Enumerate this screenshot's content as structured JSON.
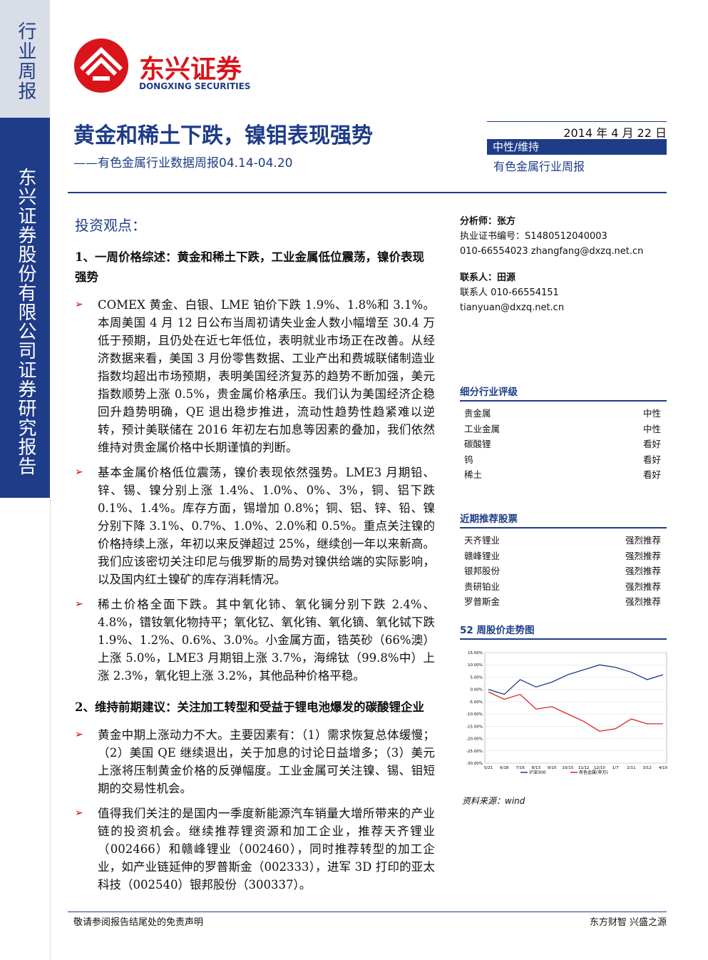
{
  "sidebar": {
    "type": "行业周报",
    "company": "东兴证券股份有限公司证券研究报告"
  },
  "logo": {
    "name": "东兴证券",
    "en": "DONGXING SECURITIES"
  },
  "title": "黄金和稀土下跌，镍钼表现强势",
  "subtitle": "——有色金属行业数据周报04.14-04.20",
  "meta": {
    "date": "2014 年 4 月 22 日",
    "rating": "中性/维持",
    "category": "有色金属行业周报"
  },
  "main": {
    "heading": "投资观点：",
    "sections": [
      {
        "heading": "1、一周价格综述：黄金和稀土下跌，工业金属低位震荡，镍价表现强势",
        "bullets": [
          "COMEX 黄金、白银、LME 铂价下跌 1.9%、1.8%和 3.1%。本周美国 4 月 12 日公布当周初请失业金人数小幅增至 30.4 万低于预期，且仍处在近七年低位，表明就业市场正在改善。从经济数据来看，美国 3 月份零售数据、工业产出和费城联储制造业指数均超出市场预期，表明美国经济复苏的趋势不断加强，美元指数顺势上涨 0.5%，贵金属价格承压。我们认为美国经济企稳回升趋势明确，QE 退出稳步推进，流动性趋势性趋紧难以逆转，预计美联储在 2016 年初左右加息等因素的叠加，我们依然维持对贵金属价格中长期谨慎的判断。",
          "基本金属价格低位震荡，镍价表现依然强势。LME3 月期铅、锌、锡、镍分别上涨 1.4%、1.0%、0%、3%，铜、铝下跌 0.1%、1.4%。库存方面，锡增加 0.8%；铜、铝、锌、铅、镍分别下降 3.1%、0.7%、1.0%、2.0%和 0.5%。重点关注镍的价格持续上涨，年初以来反弹超过 25%，继续创一年以来新高。我们应该密切关注印尼与俄罗斯的局势对镍供给端的实际影响，以及国内红土镍矿的库存消耗情况。",
          "稀土价格全面下跌。其中氧化铈、氧化镧分别下跌 2.4%、4.8%，镨钕氧化物持平；氧化钇、氧化铕、氧化镝、氧化铽下跌 1.9%、1.2%、0.6%、3.0%。小金属方面，锆英砂（66%澳）上涨 5.0%，LME3 月期钼上涨 3.7%，海绵钛（99.8%中）上涨 2.3%，氧化钽上涨 3.2%，其他品种价格平稳。"
        ]
      },
      {
        "heading": "2、维持前期建议：关注加工转型和受益于锂电池爆发的碳酸锂企业",
        "bullets": [
          "黄金中期上涨动力不大。主要因素有：（1）需求恢复总体缓慢；（2）美国 QE 继续退出，关于加息的讨论日益增多；（3）美元上涨将压制黄金价格的反弹幅度。工业金属可关注镍、锡、钼短期的交易性机会。",
          "值得我们关注的是国内一季度新能源汽车销量大增所带来的产业链的投资机会。继续推荐锂资源和加工企业，推荐天齐锂业（002466）和赣峰锂业（002460），同时推荐转型的加工企业，如产业链延伸的罗普斯金（002333），进军 3D 打印的亚太科技（002540）银邦股份（300337）。"
        ]
      }
    ]
  },
  "contacts": {
    "analyst": "分析师：张方",
    "cert": "执业证书编号：S1480512040003",
    "analyst_contact": "010-66554023 zhangfang@dxzq.net.cn",
    "contact": "联系人：田源",
    "phone": "联系人 010-66554151",
    "email": "tianyuan@dxzq.net.cn"
  },
  "ratings": {
    "heading": "细分行业评级",
    "rows": [
      [
        "贵金属",
        "中性"
      ],
      [
        "工业金属",
        "中性"
      ],
      [
        "碳酸锂",
        "看好"
      ],
      [
        "钨",
        "看好"
      ],
      [
        "稀土",
        "看好"
      ]
    ]
  },
  "stocks": {
    "heading": "近期推荐股票",
    "rows": [
      [
        "天齐锂业",
        "强烈推荐"
      ],
      [
        "赣峰锂业",
        "强烈推荐"
      ],
      [
        "银邦股份",
        "强烈推荐"
      ],
      [
        "贵研铂业",
        "强烈推荐"
      ],
      [
        "罗普斯金",
        "强烈推荐"
      ]
    ]
  },
  "chart_data": {
    "type": "line",
    "title": "52 周股价走势图",
    "source": "资料来源：wind",
    "categories": [
      "5/21",
      "6/18",
      "7/16",
      "8/13",
      "9/10",
      "10/15",
      "11/12",
      "12/10",
      "1/7",
      "2/11",
      "3/12",
      "4/10"
    ],
    "ylim": [
      -30,
      15
    ],
    "yticks": [
      {
        "value": 15,
        "label": "15.00%"
      },
      {
        "value": 10,
        "label": "10.00%"
      },
      {
        "value": 5,
        "label": "5.00%"
      },
      {
        "value": 0,
        "label": "0.00%"
      },
      {
        "value": -5,
        "label": "-5.00%"
      },
      {
        "value": -10,
        "label": "-10.00%"
      },
      {
        "value": -15,
        "label": "-15.00%"
      },
      {
        "value": -20,
        "label": "-20.00%"
      },
      {
        "value": -25,
        "label": "-25.00%"
      },
      {
        "value": -30,
        "label": "-30.00%"
      }
    ],
    "series": [
      {
        "name": "沪深300",
        "color": "#1f3c88",
        "values": [
          0,
          -2,
          4,
          1,
          3,
          6,
          8,
          10,
          9,
          7,
          4,
          6
        ]
      },
      {
        "name": "有色金属(申万)",
        "color": "#e02020",
        "values": [
          -1,
          -4,
          -2,
          -8,
          -7,
          -10,
          -13,
          -17,
          -16,
          -12,
          -14,
          -14
        ]
      }
    ]
  },
  "footer": {
    "left": "敬请参阅报告结尾处的免责声明",
    "right": "东方财智 兴盛之源"
  }
}
